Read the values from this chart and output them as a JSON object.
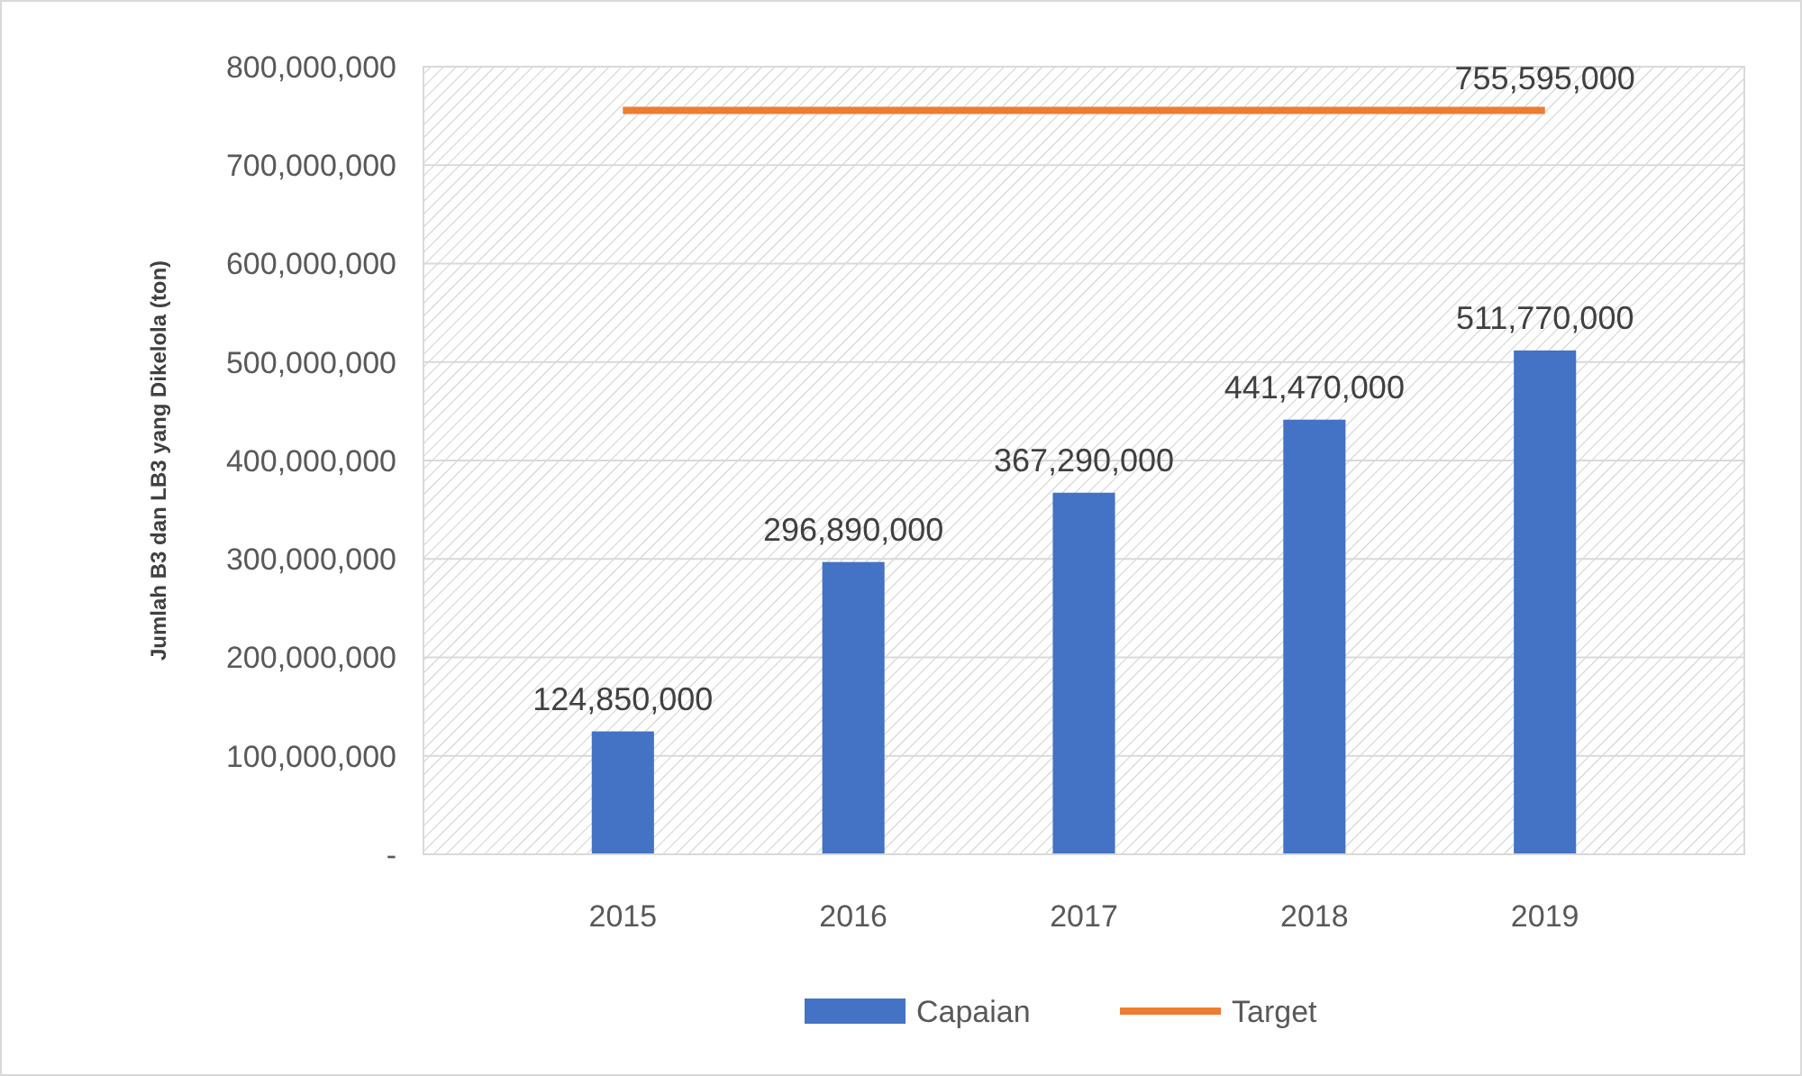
{
  "chart_data": {
    "type": "bar",
    "ylabel": "Jumlah B3 dan LB3 yang Dikelola (ton)",
    "categories": [
      "2015",
      "2016",
      "2017",
      "2018",
      "2019"
    ],
    "series": [
      {
        "name": "Capaian",
        "color": "#4472c4",
        "values": [
          124850000,
          296890000,
          367290000,
          441470000,
          511770000
        ],
        "value_labels": [
          "124,850,000",
          "296,890,000",
          "367,290,000",
          "441,470,000",
          "511,770,000"
        ]
      },
      {
        "name": "Target",
        "type": "line",
        "color": "#ed7d31",
        "values": [
          755595000,
          755595000,
          755595000,
          755595000,
          755595000
        ],
        "value_labels": [
          null,
          null,
          null,
          null,
          "755,595,000"
        ]
      }
    ],
    "ylim": [
      0,
      800000000
    ],
    "yticks": [
      {
        "value": 0,
        "label": "-"
      },
      {
        "value": 100000000,
        "label": "100,000,000"
      },
      {
        "value": 200000000,
        "label": "200,000,000"
      },
      {
        "value": 300000000,
        "label": "300,000,000"
      },
      {
        "value": 400000000,
        "label": "400,000,000"
      },
      {
        "value": 500000000,
        "label": "500,000,000"
      },
      {
        "value": 600000000,
        "label": "600,000,000"
      },
      {
        "value": 700000000,
        "label": "700,000,000"
      },
      {
        "value": 800000000,
        "label": "800,000,000"
      }
    ],
    "grid": "y",
    "legend": "bottom",
    "marker": "none",
    "line_style": "solid"
  }
}
